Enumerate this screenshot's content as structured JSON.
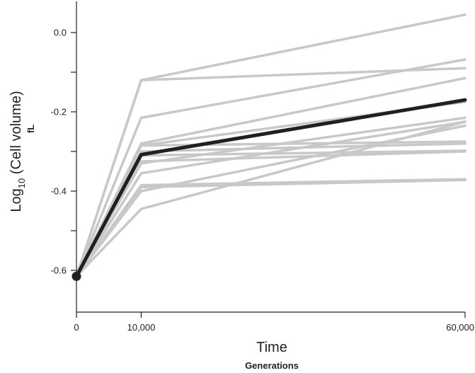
{
  "chart_data": {
    "type": "line",
    "x": [
      0,
      10000,
      60000
    ],
    "x_tick_labels": [
      "0",
      "10,000",
      "60,000"
    ],
    "y_ticks": [
      0.0,
      -0.2,
      -0.4,
      -0.6
    ],
    "y_tick_labels": [
      "0.0",
      "-0.2",
      "-0.4",
      "-0.6"
    ],
    "xlabel": "Time",
    "xlabel_sub": "Generations",
    "ylabel_prefix": "Log",
    "ylabel_subscript": "10",
    "ylabel_suffix": " (Cell volume)",
    "ylabel_sub": "fL",
    "xlim": [
      0,
      60000
    ],
    "ylim": [
      -0.7,
      0.07
    ],
    "grid": false,
    "background_series_color": "#c8c8c8",
    "mean_series_color": "#231f20",
    "series": [
      {
        "values": [
          -0.615,
          -0.12,
          0.045
        ]
      },
      {
        "values": [
          -0.615,
          -0.215,
          -0.068
        ]
      },
      {
        "values": [
          -0.615,
          -0.12,
          -0.09
        ]
      },
      {
        "values": [
          -0.615,
          -0.28,
          -0.115
        ]
      },
      {
        "values": [
          -0.615,
          -0.285,
          -0.175
        ]
      },
      {
        "values": [
          -0.615,
          -0.33,
          -0.215
        ]
      },
      {
        "values": [
          -0.615,
          -0.355,
          -0.225
        ]
      },
      {
        "values": [
          -0.615,
          -0.4,
          -0.235
        ]
      },
      {
        "values": [
          -0.615,
          -0.445,
          -0.225
        ]
      },
      {
        "values": [
          -0.615,
          -0.285,
          -0.275
        ]
      },
      {
        "values": [
          -0.615,
          -0.31,
          -0.298
        ]
      },
      {
        "values": [
          -0.615,
          -0.325,
          -0.3
        ]
      },
      {
        "values": [
          -0.615,
          -0.385,
          -0.37
        ]
      },
      {
        "values": [
          -0.615,
          -0.39,
          -0.372
        ]
      },
      {
        "values": [
          -0.615,
          -0.3,
          -0.28
        ]
      }
    ],
    "mean_series": {
      "values": [
        -0.615,
        -0.308,
        -0.17
      ]
    }
  }
}
